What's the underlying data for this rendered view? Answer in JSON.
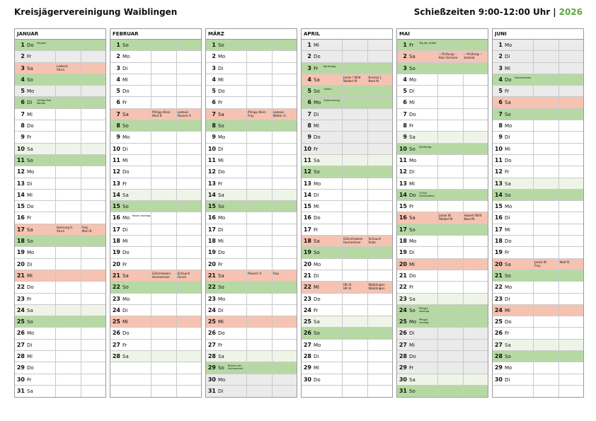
{
  "header": {
    "title": "Kreisjägervereinigung Waiblingen",
    "times_label": "Schießzeiten 9:00-12:00 Uhr",
    "separator": "|",
    "year": "2026"
  },
  "months": [
    {
      "name": "JANUAR",
      "days": [
        {
          "d": "1",
          "w": "Do",
          "t": "sun",
          "n": "Neujahr"
        },
        {
          "d": "2",
          "w": "Fr",
          "t": "grey"
        },
        {
          "d": "3",
          "w": "Sa",
          "t": "holiday",
          "s1": [
            "Ladeoic",
            "Sturn"
          ]
        },
        {
          "d": "4",
          "w": "So",
          "t": "sun"
        },
        {
          "d": "5",
          "w": "Mo",
          "t": "grey"
        },
        {
          "d": "6",
          "w": "Di",
          "t": "sun",
          "n": "Heilige Drei Könige"
        },
        {
          "d": "7",
          "w": "Mi",
          "t": "weekday"
        },
        {
          "d": "8",
          "w": "Do",
          "t": "weekday"
        },
        {
          "d": "9",
          "w": "Fr",
          "t": "weekday"
        },
        {
          "d": "10",
          "w": "Sa",
          "t": "sat"
        },
        {
          "d": "11",
          "w": "So",
          "t": "sun"
        },
        {
          "d": "12",
          "w": "Mo",
          "t": "weekday"
        },
        {
          "d": "13",
          "w": "Di",
          "t": "weekday"
        },
        {
          "d": "14",
          "w": "Mi",
          "t": "weekday"
        },
        {
          "d": "15",
          "w": "Do",
          "t": "weekday"
        },
        {
          "d": "16",
          "w": "Fr",
          "t": "weekday"
        },
        {
          "d": "17",
          "w": "Sa",
          "t": "holiday",
          "s1": [
            "Hornung V.",
            "Sturn"
          ],
          "s2": [
            "Frey",
            "Wurl B."
          ]
        },
        {
          "d": "18",
          "w": "So",
          "t": "sun"
        },
        {
          "d": "19",
          "w": "Mo",
          "t": "weekday"
        },
        {
          "d": "20",
          "w": "Di",
          "t": "weekday"
        },
        {
          "d": "21",
          "w": "Mi",
          "t": "holiday"
        },
        {
          "d": "22",
          "w": "Do",
          "t": "weekday"
        },
        {
          "d": "23",
          "w": "Fr",
          "t": "weekday"
        },
        {
          "d": "24",
          "w": "Sa",
          "t": "sat"
        },
        {
          "d": "25",
          "w": "So",
          "t": "sun"
        },
        {
          "d": "26",
          "w": "Mo",
          "t": "weekday"
        },
        {
          "d": "27",
          "w": "Di",
          "t": "weekday"
        },
        {
          "d": "28",
          "w": "Mi",
          "t": "weekday"
        },
        {
          "d": "29",
          "w": "Do",
          "t": "weekday"
        },
        {
          "d": "30",
          "w": "Fr",
          "t": "weekday"
        },
        {
          "d": "31",
          "w": "Sa",
          "t": "weekday"
        }
      ]
    },
    {
      "name": "FEBRUAR",
      "days": [
        {
          "d": "1",
          "w": "So",
          "t": "sun"
        },
        {
          "d": "2",
          "w": "Mo",
          "t": "weekday"
        },
        {
          "d": "3",
          "w": "Di",
          "t": "weekday"
        },
        {
          "d": "4",
          "w": "Mi",
          "t": "weekday"
        },
        {
          "d": "5",
          "w": "Do",
          "t": "weekday"
        },
        {
          "d": "6",
          "w": "Fr",
          "t": "weekday"
        },
        {
          "d": "7",
          "w": "Sa",
          "t": "holiday",
          "s1": [
            "Philipp Klein",
            "Wurl B"
          ],
          "s2": [
            "Ladeoic",
            "Paeach A"
          ]
        },
        {
          "d": "8",
          "w": "So",
          "t": "sun"
        },
        {
          "d": "9",
          "w": "Mo",
          "t": "weekday"
        },
        {
          "d": "10",
          "w": "Di",
          "t": "weekday"
        },
        {
          "d": "11",
          "w": "Mi",
          "t": "weekday"
        },
        {
          "d": "12",
          "w": "Do",
          "t": "weekday"
        },
        {
          "d": "13",
          "w": "Fr",
          "t": "weekday"
        },
        {
          "d": "14",
          "w": "Sa",
          "t": "sat"
        },
        {
          "d": "15",
          "w": "So",
          "t": "sun"
        },
        {
          "d": "16",
          "w": "Mo",
          "t": "weekday",
          "n": "Rosen-montag"
        },
        {
          "d": "17",
          "w": "Di",
          "t": "weekday"
        },
        {
          "d": "18",
          "w": "Mi",
          "t": "weekday"
        },
        {
          "d": "19",
          "w": "Do",
          "t": "weekday"
        },
        {
          "d": "20",
          "w": "Fr",
          "t": "weekday"
        },
        {
          "d": "21",
          "w": "Sa",
          "t": "holiday",
          "s1": [
            "Göhmelwein",
            "Hochesheer"
          ],
          "s2": [
            "Schauch",
            "Fennk"
          ]
        },
        {
          "d": "22",
          "w": "So",
          "t": "sun"
        },
        {
          "d": "23",
          "w": "Mo",
          "t": "weekday"
        },
        {
          "d": "24",
          "w": "Di",
          "t": "weekday"
        },
        {
          "d": "25",
          "w": "Mi",
          "t": "holiday"
        },
        {
          "d": "26",
          "w": "Do",
          "t": "weekday"
        },
        {
          "d": "27",
          "w": "Fr",
          "t": "weekday"
        },
        {
          "d": "28",
          "w": "Sa",
          "t": "sat"
        },
        {
          "d": "",
          "w": "",
          "t": "weekday"
        },
        {
          "d": "",
          "w": "",
          "t": "weekday"
        },
        {
          "d": "",
          "w": "",
          "t": "weekday"
        }
      ]
    },
    {
      "name": "MÄRZ",
      "days": [
        {
          "d": "1",
          "w": "So",
          "t": "sun"
        },
        {
          "d": "2",
          "w": "Mo",
          "t": "weekday"
        },
        {
          "d": "3",
          "w": "Di",
          "t": "weekday"
        },
        {
          "d": "4",
          "w": "Mi",
          "t": "weekday"
        },
        {
          "d": "5",
          "w": "Do",
          "t": "weekday"
        },
        {
          "d": "6",
          "w": "Fr",
          "t": "weekday"
        },
        {
          "d": "7",
          "w": "Sa",
          "t": "holiday",
          "s1": [
            "Philipp Klein",
            "Frey"
          ],
          "s2": [
            "Ladeoic",
            "Walter G."
          ]
        },
        {
          "d": "8",
          "w": "So",
          "t": "sun"
        },
        {
          "d": "9",
          "w": "Mo",
          "t": "weekday"
        },
        {
          "d": "10",
          "w": "Di",
          "t": "weekday"
        },
        {
          "d": "11",
          "w": "Mi",
          "t": "weekday"
        },
        {
          "d": "12",
          "w": "Do",
          "t": "weekday"
        },
        {
          "d": "13",
          "w": "Fr",
          "t": "weekday"
        },
        {
          "d": "14",
          "w": "Sa",
          "t": "sat"
        },
        {
          "d": "15",
          "w": "So",
          "t": "sun"
        },
        {
          "d": "16",
          "w": "Mo",
          "t": "weekday"
        },
        {
          "d": "17",
          "w": "Di",
          "t": "weekday"
        },
        {
          "d": "18",
          "w": "Mi",
          "t": "weekday"
        },
        {
          "d": "19",
          "w": "Do",
          "t": "weekday"
        },
        {
          "d": "20",
          "w": "Fr",
          "t": "weekday"
        },
        {
          "d": "21",
          "w": "Sa",
          "t": "holiday",
          "s1": [
            "Paeach A"
          ],
          "s2": [
            "Frey"
          ]
        },
        {
          "d": "22",
          "w": "So",
          "t": "sun"
        },
        {
          "d": "23",
          "w": "Mo",
          "t": "weekday"
        },
        {
          "d": "24",
          "w": "Di",
          "t": "weekday"
        },
        {
          "d": "25",
          "w": "Mi",
          "t": "holiday"
        },
        {
          "d": "26",
          "w": "Do",
          "t": "weekday"
        },
        {
          "d": "27",
          "w": "Fr",
          "t": "weekday"
        },
        {
          "d": "28",
          "w": "Sa",
          "t": "sat"
        },
        {
          "d": "29",
          "w": "So",
          "t": "sun",
          "n": "Beginn der Sommerzeit"
        },
        {
          "d": "30",
          "w": "Mo",
          "t": "grey"
        },
        {
          "d": "31",
          "w": "Di",
          "t": "grey"
        }
      ]
    },
    {
      "name": "APRIL",
      "days": [
        {
          "d": "1",
          "w": "Mi",
          "t": "grey"
        },
        {
          "d": "2",
          "w": "Do",
          "t": "grey"
        },
        {
          "d": "3",
          "w": "Fr",
          "t": "sun",
          "n": "Karfreitag"
        },
        {
          "d": "4",
          "w": "Sa",
          "t": "holiday",
          "s1": [
            "Janke / Wild",
            "Waibel M."
          ],
          "s2": [
            "Kramer J.",
            "Noel M."
          ]
        },
        {
          "d": "5",
          "w": "So",
          "t": "sun",
          "n": "Ostern"
        },
        {
          "d": "6",
          "w": "Mo",
          "t": "sun",
          "n": "Ostermontag"
        },
        {
          "d": "7",
          "w": "Di",
          "t": "grey"
        },
        {
          "d": "8",
          "w": "Mi",
          "t": "grey"
        },
        {
          "d": "9",
          "w": "Do",
          "t": "grey"
        },
        {
          "d": "10",
          "w": "Fr",
          "t": "grey"
        },
        {
          "d": "11",
          "w": "Sa",
          "t": "sat"
        },
        {
          "d": "12",
          "w": "So",
          "t": "sun"
        },
        {
          "d": "13",
          "w": "Mo",
          "t": "weekday"
        },
        {
          "d": "14",
          "w": "Di",
          "t": "weekday"
        },
        {
          "d": "15",
          "w": "Mi",
          "t": "weekday"
        },
        {
          "d": "16",
          "w": "Do",
          "t": "weekday"
        },
        {
          "d": "17",
          "w": "Fr",
          "t": "weekday"
        },
        {
          "d": "18",
          "w": "Sa",
          "t": "holiday",
          "s1": [
            "Göhnmewein",
            "Hochesheer"
          ],
          "s2": [
            "Schauch",
            "Seitz"
          ]
        },
        {
          "d": "19",
          "w": "So",
          "t": "sun"
        },
        {
          "d": "20",
          "w": "Mo",
          "t": "weekday"
        },
        {
          "d": "21",
          "w": "Di",
          "t": "weekday"
        },
        {
          "d": "22",
          "w": "Mi",
          "t": "holiday",
          "s1": [
            "HR III",
            "HR III"
          ],
          "s2": [
            "Waiblingen",
            "Waiblingen"
          ]
        },
        {
          "d": "23",
          "w": "Do",
          "t": "weekday"
        },
        {
          "d": "24",
          "w": "Fr",
          "t": "weekday"
        },
        {
          "d": "25",
          "w": "Sa",
          "t": "sat"
        },
        {
          "d": "26",
          "w": "So",
          "t": "sun"
        },
        {
          "d": "27",
          "w": "Mo",
          "t": "weekday"
        },
        {
          "d": "28",
          "w": "Di",
          "t": "weekday"
        },
        {
          "d": "29",
          "w": "Mi",
          "t": "weekday"
        },
        {
          "d": "30",
          "w": "Do",
          "t": "weekday"
        },
        {
          "d": "",
          "w": "",
          "t": "weekday"
        }
      ]
    },
    {
      "name": "MAI",
      "days": [
        {
          "d": "1",
          "w": "Fr",
          "t": "sun",
          "n": "Tag der Arbeit"
        },
        {
          "d": "2",
          "w": "Sa",
          "t": "holiday",
          "s1": [
            "---Prüfung---",
            "Kein Schiese"
          ],
          "s2": [
            "---Prüfung---",
            "betrieb"
          ]
        },
        {
          "d": "3",
          "w": "So",
          "t": "sun"
        },
        {
          "d": "4",
          "w": "Mo",
          "t": "weekday"
        },
        {
          "d": "5",
          "w": "Di",
          "t": "weekday"
        },
        {
          "d": "6",
          "w": "Mi",
          "t": "weekday"
        },
        {
          "d": "7",
          "w": "Do",
          "t": "weekday"
        },
        {
          "d": "8",
          "w": "Fr",
          "t": "weekday"
        },
        {
          "d": "9",
          "w": "Sa",
          "t": "sat"
        },
        {
          "d": "10",
          "w": "So",
          "t": "sun",
          "n": "Muttertag"
        },
        {
          "d": "11",
          "w": "Mo",
          "t": "weekday"
        },
        {
          "d": "12",
          "w": "Di",
          "t": "weekday"
        },
        {
          "d": "13",
          "w": "Mi",
          "t": "weekday"
        },
        {
          "d": "14",
          "w": "Do",
          "t": "sun",
          "n": "Christi Himmelfahrt"
        },
        {
          "d": "15",
          "w": "Fr",
          "t": "weekday"
        },
        {
          "d": "16",
          "w": "Sa",
          "t": "holiday",
          "s1": [
            "Janke W.",
            "Waibel M."
          ],
          "s2": [
            "Hubert Wild",
            "Noel M."
          ]
        },
        {
          "d": "17",
          "w": "So",
          "t": "sun"
        },
        {
          "d": "18",
          "w": "Mo",
          "t": "weekday"
        },
        {
          "d": "19",
          "w": "Di",
          "t": "weekday"
        },
        {
          "d": "20",
          "w": "Mi",
          "t": "holiday"
        },
        {
          "d": "21",
          "w": "Do",
          "t": "weekday"
        },
        {
          "d": "22",
          "w": "Fr",
          "t": "weekday"
        },
        {
          "d": "23",
          "w": "Sa",
          "t": "sat"
        },
        {
          "d": "24",
          "w": "So",
          "t": "sun",
          "n": "Pfingst-sonntag"
        },
        {
          "d": "25",
          "w": "Mo",
          "t": "sun",
          "n": "Pfingst-montag"
        },
        {
          "d": "26",
          "w": "Di",
          "t": "grey"
        },
        {
          "d": "27",
          "w": "Mi",
          "t": "grey"
        },
        {
          "d": "28",
          "w": "Do",
          "t": "grey"
        },
        {
          "d": "29",
          "w": "Fr",
          "t": "grey"
        },
        {
          "d": "30",
          "w": "Sa",
          "t": "sat"
        },
        {
          "d": "31",
          "w": "So",
          "t": "sun"
        }
      ]
    },
    {
      "name": "JUNI",
      "days": [
        {
          "d": "1",
          "w": "Mo",
          "t": "grey"
        },
        {
          "d": "2",
          "w": "Di",
          "t": "grey"
        },
        {
          "d": "3",
          "w": "Mi",
          "t": "grey"
        },
        {
          "d": "4",
          "w": "Do",
          "t": "sun",
          "n": "Fronleichnam"
        },
        {
          "d": "5",
          "w": "Fr",
          "t": "grey"
        },
        {
          "d": "6",
          "w": "Sa",
          "t": "holiday"
        },
        {
          "d": "7",
          "w": "So",
          "t": "sun"
        },
        {
          "d": "8",
          "w": "Mo",
          "t": "weekday"
        },
        {
          "d": "9",
          "w": "Di",
          "t": "weekday"
        },
        {
          "d": "10",
          "w": "Mi",
          "t": "weekday"
        },
        {
          "d": "11",
          "w": "Do",
          "t": "weekday"
        },
        {
          "d": "12",
          "w": "Fr",
          "t": "weekday"
        },
        {
          "d": "13",
          "w": "Sa",
          "t": "sat"
        },
        {
          "d": "14",
          "w": "So",
          "t": "sun"
        },
        {
          "d": "15",
          "w": "Mo",
          "t": "weekday"
        },
        {
          "d": "16",
          "w": "Di",
          "t": "weekday"
        },
        {
          "d": "17",
          "w": "Mi",
          "t": "weekday"
        },
        {
          "d": "18",
          "w": "Do",
          "t": "weekday"
        },
        {
          "d": "19",
          "w": "Fr",
          "t": "weekday"
        },
        {
          "d": "20",
          "w": "Sa",
          "t": "holiday",
          "s1": [
            "Janke W.",
            "Frey"
          ],
          "s2": [
            "Wulf B."
          ]
        },
        {
          "d": "21",
          "w": "So",
          "t": "sun"
        },
        {
          "d": "22",
          "w": "Mo",
          "t": "weekday"
        },
        {
          "d": "23",
          "w": "Di",
          "t": "weekday"
        },
        {
          "d": "24",
          "w": "Mi",
          "t": "holiday"
        },
        {
          "d": "25",
          "w": "Do",
          "t": "weekday"
        },
        {
          "d": "26",
          "w": "Fr",
          "t": "weekday"
        },
        {
          "d": "27",
          "w": "Sa",
          "t": "sat"
        },
        {
          "d": "28",
          "w": "So",
          "t": "sun"
        },
        {
          "d": "29",
          "w": "Mo",
          "t": "weekday"
        },
        {
          "d": "30",
          "w": "Di",
          "t": "weekday"
        },
        {
          "d": "",
          "w": "",
          "t": "weekday"
        }
      ]
    }
  ]
}
